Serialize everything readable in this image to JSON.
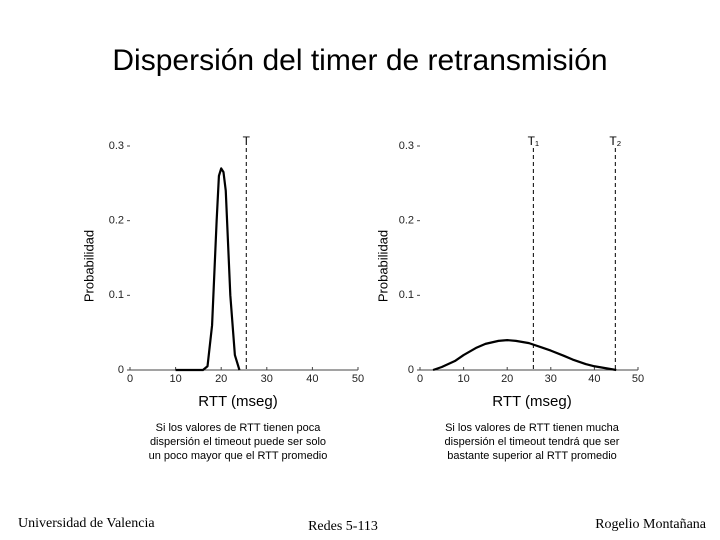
{
  "title": "Dispersión del timer de retransmisión",
  "chart_data": [
    {
      "type": "line",
      "ylabel": "Probabilidad",
      "xlabel": "RTT (mseg)",
      "x": [
        10,
        15,
        16,
        17,
        18,
        19,
        19.5,
        20,
        20.5,
        21,
        22,
        23,
        24
      ],
      "series": [
        {
          "color": "#000000",
          "values": [
            0,
            0,
            0,
            0.005,
            0.06,
            0.2,
            0.26,
            0.27,
            0.265,
            0.24,
            0.1,
            0.02,
            0
          ]
        }
      ],
      "xlim": [
        0,
        50
      ],
      "xticks": [
        0,
        10,
        20,
        30,
        40,
        50
      ],
      "ylim": [
        0,
        0.3
      ],
      "yticks": [
        0,
        0.1,
        0.2,
        0.3
      ],
      "annotations": [
        {
          "label": "T",
          "x": 25.5
        }
      ],
      "caption": [
        "Si los valores de RTT tienen poca",
        "dispersión el timeout puede ser solo",
        "un poco mayor que el RTT promedio"
      ]
    },
    {
      "type": "line",
      "ylabel": "Probabilidad",
      "xlabel": "RTT (mseg)",
      "x": [
        3,
        5,
        8,
        10,
        13,
        15,
        18,
        20,
        22,
        25,
        28,
        30,
        33,
        35,
        38,
        40,
        43,
        45
      ],
      "series": [
        {
          "color": "#000000",
          "values": [
            0,
            0.004,
            0.012,
            0.02,
            0.03,
            0.035,
            0.039,
            0.04,
            0.039,
            0.036,
            0.03,
            0.026,
            0.019,
            0.014,
            0.008,
            0.005,
            0.002,
            0
          ]
        }
      ],
      "xlim": [
        0,
        50
      ],
      "xticks": [
        0,
        10,
        20,
        30,
        40,
        50
      ],
      "ylim": [
        0,
        0.3
      ],
      "yticks": [
        0,
        0.1,
        0.2,
        0.3
      ],
      "annotations": [
        {
          "label": "T₁",
          "x": 26
        },
        {
          "label": "T₂",
          "x": 44.8
        }
      ],
      "caption": [
        "Si los valores de RTT tienen mucha",
        "dispersión el timeout tendrá que ser",
        "bastante superior al RTT promedio"
      ]
    }
  ],
  "footer": {
    "left": "Universidad de Valencia",
    "center": "Redes 5-113",
    "right": "Rogelio Montañana"
  }
}
